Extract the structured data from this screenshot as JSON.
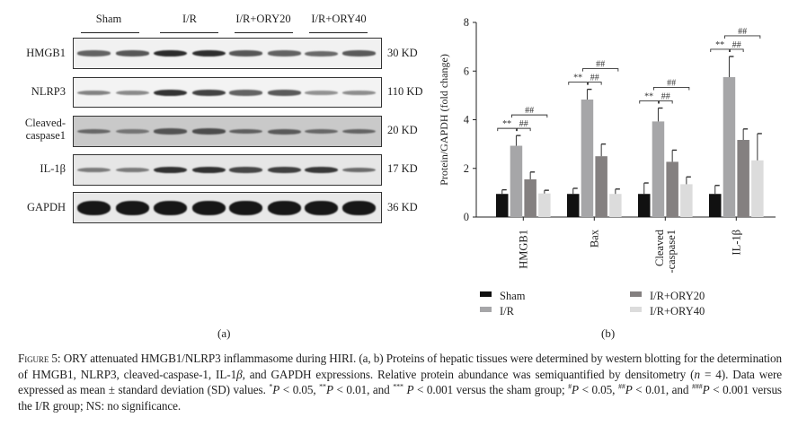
{
  "panel_a": {
    "label": "(a)",
    "groups": [
      "Sham",
      "I/R",
      "I/R+ORY20",
      "I/R+ORY40"
    ],
    "blots": [
      {
        "name": "HMGB1",
        "size": "30 KD",
        "background": "#f1f1f1",
        "band_intensity": [
          0.55,
          0.62,
          0.9,
          0.88,
          0.62,
          0.55,
          0.5,
          0.6
        ]
      },
      {
        "name": "NLRP3",
        "size": "110 KD",
        "background": "#f3f3f3",
        "band_intensity": [
          0.35,
          0.3,
          0.85,
          0.75,
          0.55,
          0.6,
          0.25,
          0.28
        ]
      },
      {
        "name_line1": "Cleaved-",
        "name_line2": "caspase1",
        "size": "20 KD",
        "background": "#c9c9c9",
        "band_intensity": [
          0.4,
          0.3,
          0.55,
          0.6,
          0.45,
          0.5,
          0.4,
          0.42
        ]
      },
      {
        "name": "IL-1β",
        "size": "17 KD",
        "background": "#e6e6e6",
        "band_intensity": [
          0.35,
          0.35,
          0.85,
          0.85,
          0.7,
          0.75,
          0.8,
          0.45
        ]
      },
      {
        "name": "GAPDH",
        "size": "36 KD",
        "background": "#e8e8e8",
        "band_intensity": [
          1,
          1,
          1,
          1,
          1,
          1,
          1,
          1
        ]
      }
    ]
  },
  "panel_b": {
    "label": "(b)"
  },
  "chart_data": {
    "type": "bar",
    "ylabel": "Protein/GAPDH (fold change)",
    "xlabel": "",
    "ylim": [
      0,
      8
    ],
    "yticks": [
      "0",
      "2",
      "4",
      "6",
      "8"
    ],
    "categories": [
      "HMGB1",
      "Bax",
      "Cleaved\n-caspase1",
      "IL-1β"
    ],
    "category_lines": [
      [
        "HMGB1"
      ],
      [
        "Bax"
      ],
      [
        "Cleaved",
        "-caspase1"
      ],
      [
        "IL-1β"
      ]
    ],
    "series": [
      {
        "name": "Sham",
        "color": "#111111",
        "values": [
          0.95,
          0.95,
          0.95,
          0.95
        ],
        "sd": [
          0.17,
          0.23,
          0.45,
          0.35
        ]
      },
      {
        "name": "I/R",
        "color": "#a6a6a8",
        "values": [
          2.93,
          4.83,
          3.93,
          5.75
        ],
        "sd": [
          0.42,
          0.42,
          0.55,
          0.85
        ]
      },
      {
        "name": "I/R+ORY20",
        "color": "#848080",
        "values": [
          1.55,
          2.5,
          2.27,
          3.17
        ],
        "sd": [
          0.3,
          0.5,
          0.48,
          0.45
        ]
      },
      {
        "name": "I/R+ORY40",
        "color": "#dcdcdc",
        "values": [
          0.97,
          0.95,
          1.35,
          2.33
        ],
        "sd": [
          0.13,
          0.2,
          0.3,
          1.1
        ]
      }
    ],
    "annotations": [
      {
        "from": 0,
        "to": 1,
        "label": "**"
      },
      {
        "from": 1,
        "to": 2,
        "label": "##"
      },
      {
        "from": 1,
        "to": 3,
        "label": "##"
      }
    ],
    "legend_position": "bottom",
    "grid": false
  },
  "caption": [
    {
      "t": "Figure 5:",
      "sc": true
    },
    {
      "t": " ORY attenuated HMGB1/NLRP3 inflammasome during HIRI. (a, b) Proteins of hepatic tissues were determined by western blotting for the determination of HMGB1, NLRP3, cleaved-caspase-1, IL-1"
    },
    {
      "t": "β",
      "i": true
    },
    {
      "t": ", and GAPDH expressions. Relative protein abundance was semiquantified by densitometry ("
    },
    {
      "t": "n",
      "i": true
    },
    {
      "t": " = 4). Data were expressed as mean ± standard deviation (SD) values. "
    },
    {
      "t": "*",
      "sup": true
    },
    {
      "t": "P",
      "i": true
    },
    {
      "t": " < 0.05, "
    },
    {
      "t": "**",
      "sup": true
    },
    {
      "t": "P",
      "i": true
    },
    {
      "t": " < 0.01, and "
    },
    {
      "t": "***",
      "sup": true
    },
    {
      "t": " P",
      "i": true
    },
    {
      "t": " < 0.001 versus the sham group; "
    },
    {
      "t": "#",
      "sup": true
    },
    {
      "t": "P",
      "i": true
    },
    {
      "t": " < 0.05, "
    },
    {
      "t": "##",
      "sup": true
    },
    {
      "t": "P",
      "i": true
    },
    {
      "t": " < 0.01, and "
    },
    {
      "t": "###",
      "sup": true
    },
    {
      "t": "P",
      "i": true
    },
    {
      "t": " < 0.001 versus the I/R group; NS: no significance."
    }
  ]
}
